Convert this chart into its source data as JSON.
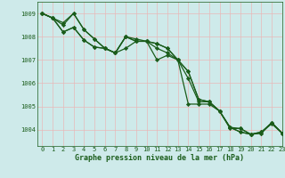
{
  "title": "Graphe pression niveau de la mer (hPa)",
  "background_color": "#ceeaea",
  "grid_color": "#e8b8b8",
  "line_color": "#1a5c1a",
  "marker_color": "#1a5c1a",
  "xlim": [
    -0.5,
    23
  ],
  "ylim": [
    1003.3,
    1009.5
  ],
  "yticks": [
    1004,
    1005,
    1006,
    1007,
    1008,
    1009
  ],
  "xticks": [
    0,
    1,
    2,
    3,
    4,
    5,
    6,
    7,
    8,
    9,
    10,
    11,
    12,
    13,
    14,
    15,
    16,
    17,
    18,
    19,
    20,
    21,
    22,
    23
  ],
  "series": [
    [
      1009.0,
      1008.8,
      1008.6,
      1009.0,
      1008.3,
      1007.9,
      1007.5,
      1007.3,
      1008.0,
      1007.9,
      1007.8,
      1007.7,
      1007.5,
      1007.0,
      1006.5,
      1005.3,
      1005.2,
      1004.8,
      1004.1,
      1003.9,
      1003.8,
      1003.85,
      1004.3,
      1003.85
    ],
    [
      1009.0,
      1008.8,
      1008.5,
      1009.0,
      1008.3,
      1007.9,
      1007.5,
      1007.3,
      1007.5,
      1007.8,
      1007.8,
      1007.0,
      1007.2,
      1007.0,
      1005.1,
      1005.1,
      1005.1,
      1004.8,
      1004.1,
      1003.9,
      1003.8,
      1003.85,
      1004.3,
      1003.85
    ],
    [
      1009.0,
      1008.8,
      1008.2,
      1008.4,
      1007.85,
      1007.55,
      1007.5,
      1007.3,
      1008.0,
      1007.8,
      1007.8,
      1007.7,
      1007.5,
      1007.0,
      1006.5,
      1005.3,
      1005.2,
      1004.8,
      1004.1,
      1004.05,
      1003.8,
      1003.9,
      1004.25,
      1003.85
    ],
    [
      1009.0,
      1008.8,
      1008.2,
      1008.4,
      1007.85,
      1007.55,
      1007.5,
      1007.3,
      1008.0,
      1007.8,
      1007.8,
      1007.5,
      1007.3,
      1007.0,
      1006.2,
      1005.2,
      1005.2,
      1004.8,
      1004.05,
      1004.05,
      1003.8,
      1003.9,
      1004.3,
      1003.85
    ]
  ],
  "xlabel_fontsize": 6.0,
  "tick_fontsize": 5.0,
  "linewidth": 0.9,
  "markersize": 2.2
}
